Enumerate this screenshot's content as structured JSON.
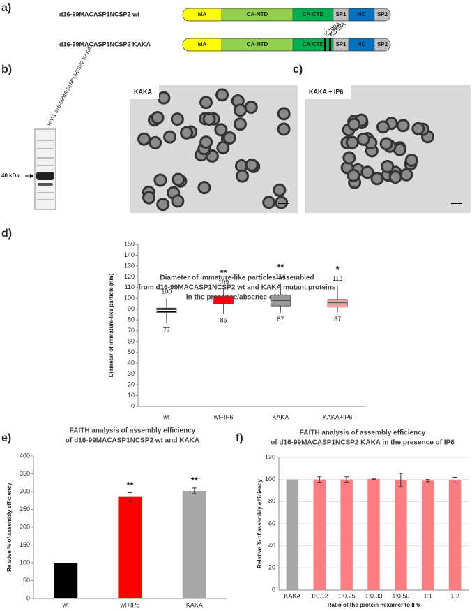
{
  "panel_labels": {
    "a": "a)",
    "b": "b)",
    "c": "c)",
    "d": "d)",
    "e": "e)",
    "f": "f)"
  },
  "constructs": [
    {
      "name": "d16-99MACASP1NCSP2 wt",
      "domains": [
        "MA",
        "CA-NTD",
        "CA-CTD",
        "SP1",
        "NC",
        "SP2"
      ]
    },
    {
      "name": "d16-99MACASP1NCSP2 KAKA",
      "domains": [
        "MA",
        "CA-NTD",
        "CA-CTD",
        "SP1",
        "NC",
        "SP2"
      ],
      "mutations": [
        "K290A",
        "K359A"
      ]
    }
  ],
  "gel": {
    "lane_label": "HIV-1 d16-99MACASP1NCSP2 KAKA",
    "marker": "40 kDa"
  },
  "micrographs": [
    {
      "label": "KAKA"
    },
    {
      "label": "KAKA + IP6"
    }
  ],
  "chart_data": [
    {
      "type": "box",
      "title": [
        "Diameter of immature-like particles assembled",
        "from d16-99MACASP1NCSP2 wt and KAKA mutant proteins",
        "in the presence/absence of IP6"
      ],
      "ylabel": "Diameter of immature-like particle (nm)",
      "categories": [
        "wt",
        "wt+IP6",
        "KAKA",
        "KAKA+IP6"
      ],
      "min": [
        77,
        86,
        87,
        87
      ],
      "q1": [
        87,
        95,
        93,
        92
      ],
      "median": [
        89,
        99,
        98,
        96
      ],
      "q3": [
        91,
        102,
        103,
        99
      ],
      "max": [
        100,
        109,
        114,
        112
      ],
      "annotations": [
        null,
        "**",
        "**",
        "*"
      ],
      "colors": [
        "#000000",
        "#ff0000",
        "#999999",
        "#f4a0a0"
      ],
      "ylim": [
        0,
        150
      ],
      "yticks": [
        0,
        10,
        20,
        30,
        40,
        50,
        60,
        70,
        80,
        90,
        100,
        110,
        120,
        130,
        140,
        150
      ],
      "grid": false
    },
    {
      "type": "bar",
      "title": [
        "FAITH analysis of assembly efficiency",
        "of d16-99MACASP1NCSP2 wt and KAKA"
      ],
      "ylabel": "Relative % of assembly efficiency",
      "categories": [
        "wt",
        "wt+IP6",
        "KAKA"
      ],
      "values": [
        100,
        285,
        302
      ],
      "errors": [
        null,
        12,
        8
      ],
      "annotations": [
        null,
        "**",
        "**"
      ],
      "colors": [
        "#000000",
        "#ff0000",
        "#a6a6a6"
      ],
      "ylim": [
        0,
        400
      ],
      "yticks": [
        0,
        50,
        100,
        150,
        200,
        250,
        300,
        350,
        400
      ],
      "grid": false
    },
    {
      "type": "bar",
      "title": [
        "FAITH analysis of assembly efficiency",
        "of d16-99MACASP1NCSP2 KAKA in the presence of IP6"
      ],
      "ylabel": "Relative % of assembly efficiency",
      "xlabel": "Ratio of the protein hexamer to IP6",
      "categories": [
        "KAKA",
        "1:0.12",
        "1:0.25",
        "1:0.33",
        "1:0.50",
        "1:1",
        "1:2"
      ],
      "values": [
        100,
        100,
        100,
        100.5,
        99.5,
        99,
        99.5
      ],
      "errors": [
        null,
        2.5,
        2.5,
        0.5,
        6,
        1,
        2.5
      ],
      "colors": [
        "#a6a6a6",
        "#ff7c80",
        "#ff7c80",
        "#ff7c80",
        "#ff7c80",
        "#ff7c80",
        "#ff7c80"
      ],
      "ylim": [
        0,
        120
      ],
      "yticks": [
        0,
        20,
        40,
        60,
        80,
        100,
        120
      ],
      "grid": true
    }
  ]
}
